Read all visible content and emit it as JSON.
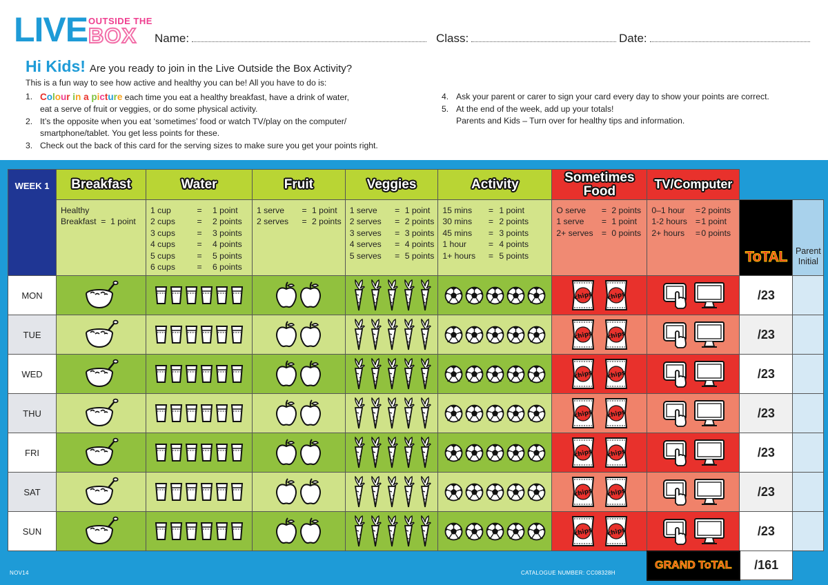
{
  "logo": {
    "live": "LIVE",
    "outside": "OUTSIDE THE",
    "box": "BOX"
  },
  "fields": {
    "name": "Name:",
    "class": "Class:",
    "date": "Date:"
  },
  "heading": {
    "hi": "Hi Kids!",
    "question": "Are you ready to join in the Live Outside the Box Activity?"
  },
  "intro": "This is a fun way to see how active and healthy you can be! All you have to do is:",
  "instructions_left": [
    {
      "num": "1.",
      "highlight": "Colour in a picture",
      "line1": " each time you eat a healthy breakfast, have a drink of water,",
      "line2": "eat a serve of fruit or veggies, or do some physical activity."
    },
    {
      "num": "2.",
      "line1": "It’s the opposite when you eat ‘sometimes’ food or watch TV/play on the computer/",
      "line2": "smartphone/tablet. You get less points for these."
    },
    {
      "num": "3.",
      "line1": "Check out the back of this card for the serving sizes to make sure you get your points right."
    }
  ],
  "instructions_right": [
    {
      "num": "4.",
      "line1": "Ask your parent or carer to sign your card every day to show your points are correct."
    },
    {
      "num": "5.",
      "line1": "At the end of the week, add up your totals!",
      "line2": "Parents and Kids – Turn over for healthy tips and information."
    }
  ],
  "table": {
    "week": "WEEK 1",
    "categories": {
      "breakfast": "Breakfast",
      "water": "Water",
      "fruit": "Fruit",
      "veggies": "Veggies",
      "activity": "Activity",
      "sometimes1": "Sometimes",
      "sometimes2": "Food",
      "tv": "TV/Computer"
    },
    "scoring": {
      "breakfast": [
        "Healthy",
        "Breakfast  =  1 point"
      ],
      "water": [
        [
          "1 cup",
          "=",
          "1 point"
        ],
        [
          "2 cups",
          "=",
          "2 points"
        ],
        [
          "3 cups",
          "=",
          "3 points"
        ],
        [
          "4 cups",
          "=",
          "4 points"
        ],
        [
          "5 cups",
          "=",
          "5 points"
        ],
        [
          "6 cups",
          "=",
          "6 points"
        ]
      ],
      "fruit": [
        [
          "1 serve",
          "=",
          "1 point"
        ],
        [
          "2 serves",
          "=",
          "2 points"
        ]
      ],
      "veggies": [
        [
          "1 serve",
          "=",
          "1 point"
        ],
        [
          "2 serves",
          "=",
          "2 points"
        ],
        [
          "3 serves",
          "=",
          "3 points"
        ],
        [
          "4 serves",
          "=",
          "4 points"
        ],
        [
          "5 serves",
          "=",
          "5 points"
        ]
      ],
      "activity": [
        [
          "15 mins",
          "=",
          "1 point"
        ],
        [
          "30 mins",
          "=",
          "2 points"
        ],
        [
          "45 mins",
          "=",
          "3 points"
        ],
        [
          "1 hour",
          "=",
          "4 points"
        ],
        [
          "1+ hours",
          "=",
          "5 points"
        ]
      ],
      "sometimes": [
        [
          "O serve",
          "=",
          "2 points"
        ],
        [
          "1 serve",
          "=",
          "1 point"
        ],
        [
          "2+ serves",
          "=",
          "0 points"
        ]
      ],
      "tv": [
        [
          "0–1 hour",
          "=",
          "2 points"
        ],
        [
          "1-2 hours",
          "=",
          "1 point"
        ],
        [
          "2+ hours",
          "=",
          "0 points"
        ]
      ]
    },
    "total_label": "ToTAL",
    "parent_label": [
      "Parent",
      "Initial"
    ],
    "days": [
      {
        "day": "MON",
        "total": "/23"
      },
      {
        "day": "TUE",
        "total": "/23"
      },
      {
        "day": "WED",
        "total": "/23"
      },
      {
        "day": "THU",
        "total": "/23"
      },
      {
        "day": "FRI",
        "total": "/23"
      },
      {
        "day": "SAT",
        "total": "/23"
      },
      {
        "day": "SUN",
        "total": "/23"
      }
    ],
    "grand_total_label": "GRAND ToTAL",
    "grand_total": "/161",
    "chips_text": "chips"
  },
  "footer": {
    "code": "NOV14",
    "catalogue": "CATALOGUE NUMBER: CC08328H"
  }
}
